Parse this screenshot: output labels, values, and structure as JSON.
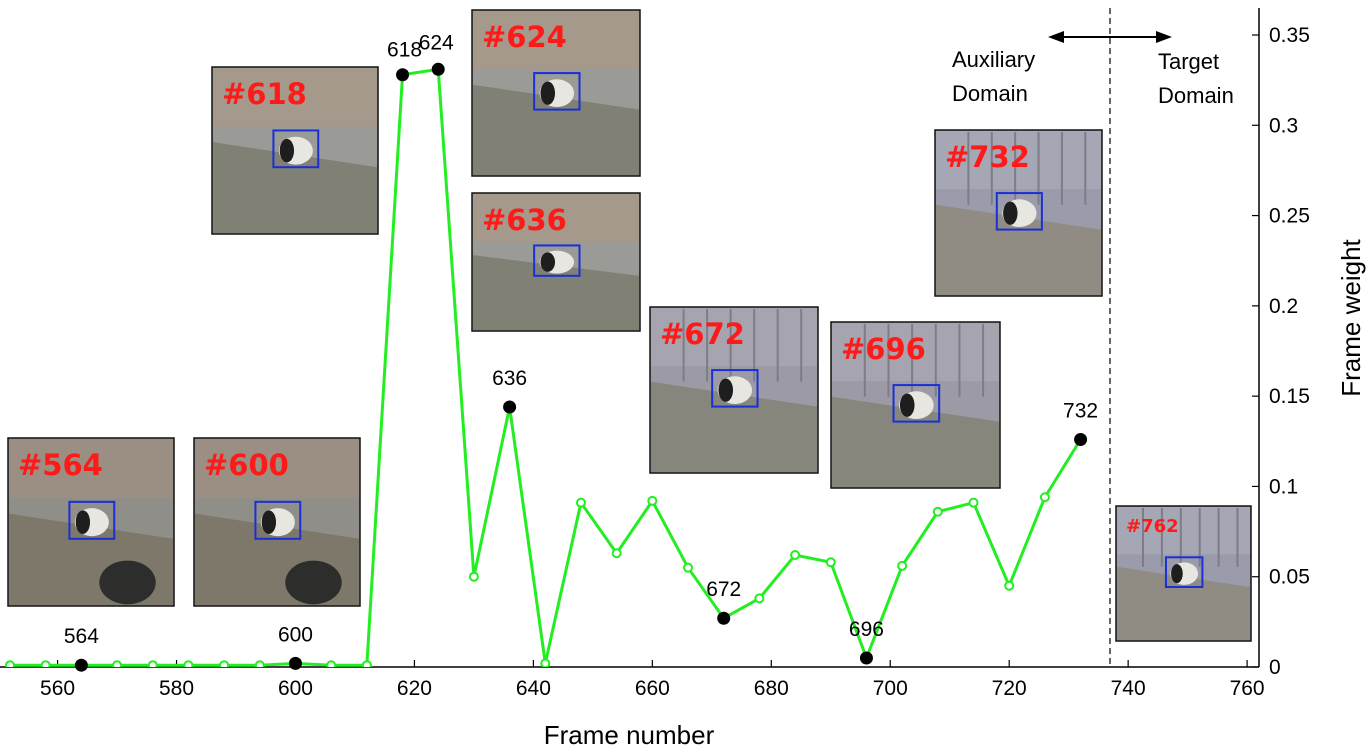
{
  "chart_data": {
    "type": "line",
    "xlabel": "Frame number",
    "ylabel": "Frame weight",
    "xlim": [
      552,
      762
    ],
    "ylim": [
      0,
      0.36
    ],
    "x_ticks": [
      560,
      580,
      600,
      620,
      640,
      660,
      680,
      700,
      720,
      740,
      760
    ],
    "y_ticks": [
      0,
      0.05,
      0.1,
      0.15,
      0.2,
      0.25,
      0.3,
      0.35
    ],
    "y_tick_labels": [
      "0",
      "0.05",
      "0.1",
      "0.15",
      "0.2",
      "0.25",
      "0.3",
      "0.35"
    ],
    "series": [
      {
        "color": "#22ee22",
        "x": [
          552,
          558,
          564,
          570,
          576,
          582,
          588,
          594,
          600,
          606,
          612,
          618,
          624,
          630,
          636,
          642,
          648,
          654,
          660,
          666,
          672,
          678,
          684,
          690,
          696,
          702,
          708,
          714,
          720,
          726,
          732
        ],
        "y": [
          0.001,
          0.001,
          0.001,
          0.001,
          0.001,
          0.001,
          0.001,
          0.001,
          0.002,
          0.001,
          0.001,
          0.328,
          0.331,
          0.05,
          0.144,
          0.002,
          0.091,
          0.063,
          0.092,
          0.055,
          0.027,
          0.038,
          0.062,
          0.058,
          0.005,
          0.056,
          0.086,
          0.091,
          0.045,
          0.094,
          0.126
        ]
      }
    ],
    "highlighted_points": [
      {
        "x": 564,
        "y": 0.001,
        "label": "564"
      },
      {
        "x": 600,
        "y": 0.002,
        "label": "600"
      },
      {
        "x": 618,
        "y": 0.328,
        "label": "618"
      },
      {
        "x": 624,
        "y": 0.331,
        "label": "624"
      },
      {
        "x": 636,
        "y": 0.144,
        "label": "636"
      },
      {
        "x": 672,
        "y": 0.027,
        "label": "672"
      },
      {
        "x": 696,
        "y": 0.005,
        "label": "696"
      },
      {
        "x": 732,
        "y": 0.126,
        "label": "732"
      }
    ],
    "domain_split_x": 737,
    "annotations": {
      "left_domain": [
        "Auxiliary",
        "Domain"
      ],
      "right_domain": [
        "Target",
        "Domain"
      ]
    },
    "thumbnails": [
      {
        "label": "#564",
        "scene": "log"
      },
      {
        "label": "#600",
        "scene": "log"
      },
      {
        "label": "#618",
        "scene": "grass"
      },
      {
        "label": "#624",
        "scene": "grass"
      },
      {
        "label": "#636",
        "scene": "grass"
      },
      {
        "label": "#672",
        "scene": "fence"
      },
      {
        "label": "#696",
        "scene": "fence"
      },
      {
        "label": "#732",
        "scene": "wall"
      },
      {
        "label": "#762",
        "scene": "wall"
      }
    ]
  }
}
